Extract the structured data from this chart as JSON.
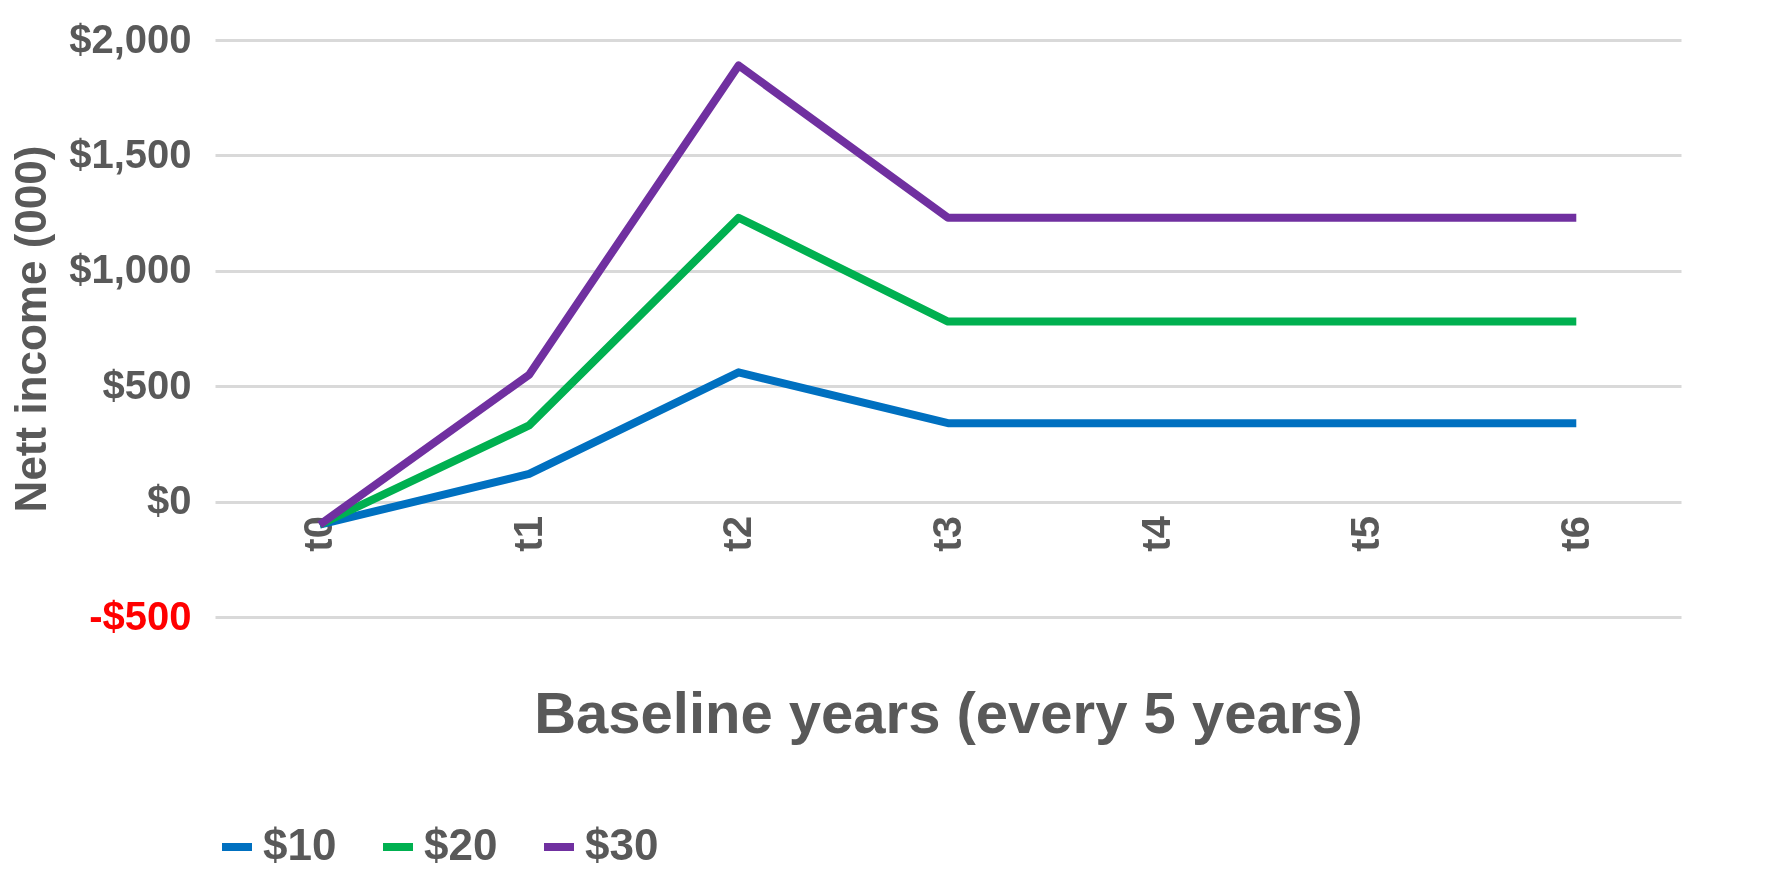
{
  "chart_data": {
    "type": "line",
    "xlabel": "Baseline years (every 5 years)",
    "ylabel": "Nett income (000)",
    "categories": [
      "t0",
      "t1",
      "t2",
      "t3",
      "t4",
      "t5",
      "t6"
    ],
    "series": [
      {
        "name": "$10",
        "color": "#0070c0",
        "values": [
          -100,
          120,
          560,
          340,
          340,
          340,
          340
        ]
      },
      {
        "name": "$20",
        "color": "#00b050",
        "values": [
          -100,
          330,
          1230,
          780,
          780,
          780,
          780
        ]
      },
      {
        "name": "$30",
        "color": "#7030a0",
        "values": [
          -100,
          550,
          1890,
          1230,
          1230,
          1230,
          1230
        ]
      }
    ],
    "ylim": [
      -500,
      2000
    ],
    "yticks": [
      {
        "value": -500,
        "label": "-$500"
      },
      {
        "value": 0,
        "label": "$0"
      },
      {
        "value": 500,
        "label": "$500"
      },
      {
        "value": 1000,
        "label": "$1,000"
      },
      {
        "value": 1500,
        "label": "$1,500"
      },
      {
        "value": 2000,
        "label": "$2,000"
      }
    ],
    "grid": "y",
    "legend": "bottom",
    "marker": "none",
    "line_style": "solid"
  }
}
